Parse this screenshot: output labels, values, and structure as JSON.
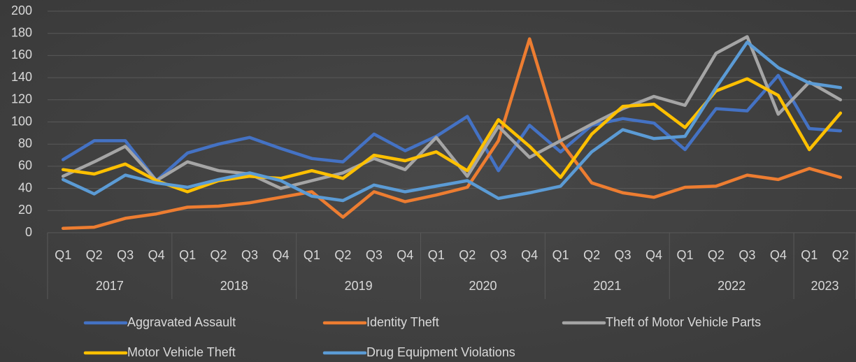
{
  "chart_data": {
    "type": "line",
    "years": [
      {
        "label": "2017",
        "quarters": [
          "Q1",
          "Q2",
          "Q3",
          "Q4"
        ]
      },
      {
        "label": "2018",
        "quarters": [
          "Q1",
          "Q2",
          "Q3",
          "Q4"
        ]
      },
      {
        "label": "2019",
        "quarters": [
          "Q1",
          "Q2",
          "Q3",
          "Q4"
        ]
      },
      {
        "label": "2020",
        "quarters": [
          "Q1",
          "Q2",
          "Q3",
          "Q4"
        ]
      },
      {
        "label": "2021",
        "quarters": [
          "Q1",
          "Q2",
          "Q3",
          "Q4"
        ]
      },
      {
        "label": "2022",
        "quarters": [
          "Q1",
          "Q2",
          "Q3",
          "Q4"
        ]
      },
      {
        "label": "2023",
        "quarters": [
          "Q1",
          "Q2"
        ]
      }
    ],
    "series": [
      {
        "name": "Aggravated Assault",
        "color": "#4472c4",
        "values": [
          66,
          83,
          83,
          47,
          72,
          80,
          86,
          76,
          67,
          64,
          89,
          74,
          87,
          105,
          56,
          97,
          73,
          97,
          103,
          99,
          75,
          112,
          110,
          142,
          94,
          92
        ]
      },
      {
        "name": "Identity Theft",
        "color": "#ed7d31",
        "values": [
          4,
          5,
          13,
          17,
          23,
          24,
          27,
          32,
          37,
          14,
          37,
          28,
          34,
          41,
          83,
          175,
          82,
          45,
          36,
          32,
          41,
          42,
          52,
          48,
          58,
          50
        ]
      },
      {
        "name": "Theft of Motor Vehicle Parts",
        "color": "#a5a5a5",
        "values": [
          51,
          64,
          78,
          47,
          64,
          56,
          53,
          40,
          47,
          54,
          67,
          57,
          86,
          51,
          96,
          68,
          83,
          98,
          112,
          123,
          115,
          162,
          177,
          107,
          136,
          120
        ]
      },
      {
        "name": "Motor Vehicle Theft",
        "color": "#ffc000",
        "values": [
          57,
          53,
          62,
          47,
          37,
          47,
          51,
          49,
          56,
          49,
          70,
          65,
          73,
          56,
          102,
          78,
          50,
          89,
          114,
          116,
          95,
          128,
          139,
          124,
          75,
          108
        ]
      },
      {
        "name": "Drug Equipment Violations",
        "color": "#5b9bd5",
        "values": [
          48,
          35,
          52,
          45,
          41,
          48,
          54,
          47,
          33,
          29,
          43,
          37,
          42,
          47,
          31,
          36,
          42,
          73,
          93,
          85,
          87,
          131,
          172,
          149,
          135,
          131
        ]
      }
    ],
    "ylim": [
      0,
      200
    ],
    "yticks": [
      0,
      20,
      40,
      60,
      80,
      100,
      120,
      140,
      160,
      180,
      200
    ],
    "grid": true,
    "legend": "bottom"
  }
}
